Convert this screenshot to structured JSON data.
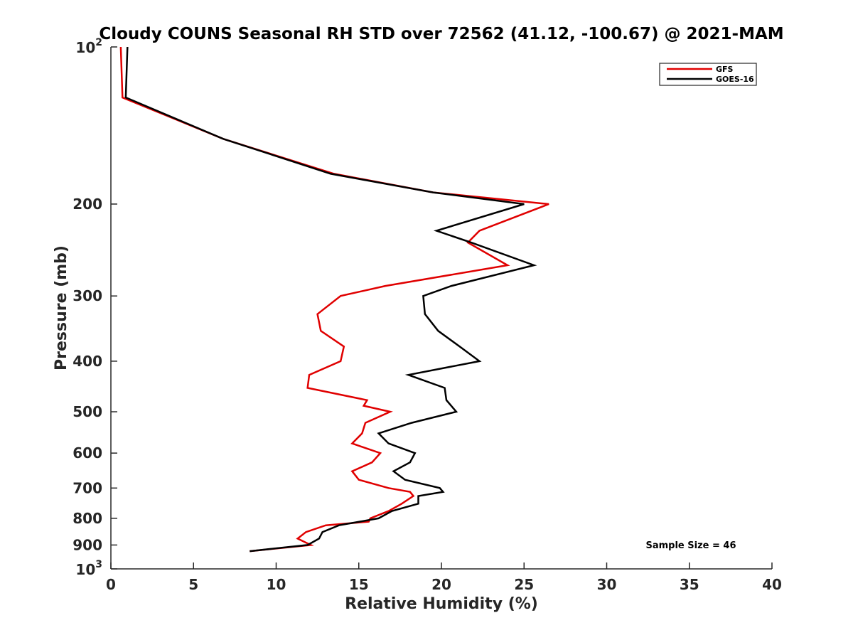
{
  "chart_data": {
    "type": "line",
    "title": "Cloudy COUNS Seasonal RH STD over 72562 (41.12, -100.67) @ 2021-MAM",
    "xlabel": "Relative Humidity (%)",
    "ylabel": "Pressure (mb)",
    "xlim": [
      0,
      40
    ],
    "ylim": [
      100,
      1000
    ],
    "yscale": "log",
    "yreversed": true,
    "grid": false,
    "legend_position": "top-right",
    "x_ticks": [
      "0",
      "5",
      "10",
      "15",
      "20",
      "25",
      "30",
      "35",
      "40"
    ],
    "y_ticks": [
      {
        "value": 100,
        "base": "10",
        "exp": "2"
      },
      {
        "value": 200,
        "label": "200"
      },
      {
        "value": 300,
        "label": "300"
      },
      {
        "value": 400,
        "label": "400"
      },
      {
        "value": 500,
        "label": "500"
      },
      {
        "value": 600,
        "label": "600"
      },
      {
        "value": 700,
        "label": "700"
      },
      {
        "value": 800,
        "label": "800"
      },
      {
        "value": 900,
        "label": "900"
      },
      {
        "value": 1000,
        "base": "10",
        "exp": "3"
      }
    ],
    "series": [
      {
        "name": "GFS",
        "color": "#e00000",
        "points": [
          [
            0.6,
            100
          ],
          [
            0.7,
            125
          ],
          [
            6.8,
            150
          ],
          [
            13.5,
            175
          ],
          [
            19.5,
            190
          ],
          [
            26.5,
            200
          ],
          [
            22.3,
            225
          ],
          [
            21.6,
            237
          ],
          [
            24.0,
            262
          ],
          [
            16.6,
            287
          ],
          [
            13.9,
            300
          ],
          [
            12.5,
            325
          ],
          [
            12.7,
            350
          ],
          [
            14.1,
            375
          ],
          [
            13.9,
            400
          ],
          [
            12.0,
            425
          ],
          [
            11.9,
            450
          ],
          [
            15.5,
            475
          ],
          [
            15.3,
            487
          ],
          [
            16.9,
            500
          ],
          [
            15.4,
            525
          ],
          [
            15.2,
            550
          ],
          [
            14.6,
            575
          ],
          [
            16.3,
            600
          ],
          [
            15.8,
            625
          ],
          [
            14.6,
            650
          ],
          [
            15.0,
            675
          ],
          [
            16.8,
            700
          ],
          [
            18.1,
            712
          ],
          [
            18.3,
            725
          ],
          [
            17.6,
            750
          ],
          [
            16.8,
            775
          ],
          [
            15.7,
            800
          ],
          [
            15.6,
            812
          ],
          [
            13.0,
            825
          ],
          [
            11.8,
            850
          ],
          [
            11.3,
            875
          ],
          [
            12.1,
            900
          ],
          [
            8.4,
            925
          ]
        ]
      },
      {
        "name": "GOES-16",
        "color": "#000000",
        "points": [
          [
            1.0,
            100
          ],
          [
            0.9,
            125
          ],
          [
            6.8,
            150
          ],
          [
            13.3,
            175
          ],
          [
            19.5,
            190
          ],
          [
            25.0,
            200
          ],
          [
            19.7,
            225
          ],
          [
            21.8,
            237
          ],
          [
            25.6,
            262
          ],
          [
            20.6,
            287
          ],
          [
            18.9,
            300
          ],
          [
            19.0,
            325
          ],
          [
            19.8,
            350
          ],
          [
            21.1,
            375
          ],
          [
            22.3,
            400
          ],
          [
            18.0,
            425
          ],
          [
            20.2,
            450
          ],
          [
            20.3,
            475
          ],
          [
            20.9,
            500
          ],
          [
            18.2,
            525
          ],
          [
            16.2,
            550
          ],
          [
            16.8,
            575
          ],
          [
            18.4,
            600
          ],
          [
            18.1,
            625
          ],
          [
            17.1,
            650
          ],
          [
            17.8,
            675
          ],
          [
            19.9,
            700
          ],
          [
            20.1,
            712
          ],
          [
            18.6,
            725
          ],
          [
            18.6,
            750
          ],
          [
            17.0,
            775
          ],
          [
            16.2,
            800
          ],
          [
            13.8,
            825
          ],
          [
            12.8,
            850
          ],
          [
            12.6,
            875
          ],
          [
            11.9,
            900
          ],
          [
            8.4,
            925
          ]
        ]
      }
    ],
    "legend": [
      "GFS",
      "GOES-16"
    ],
    "annotations": [
      "Sample Size = 46"
    ]
  }
}
